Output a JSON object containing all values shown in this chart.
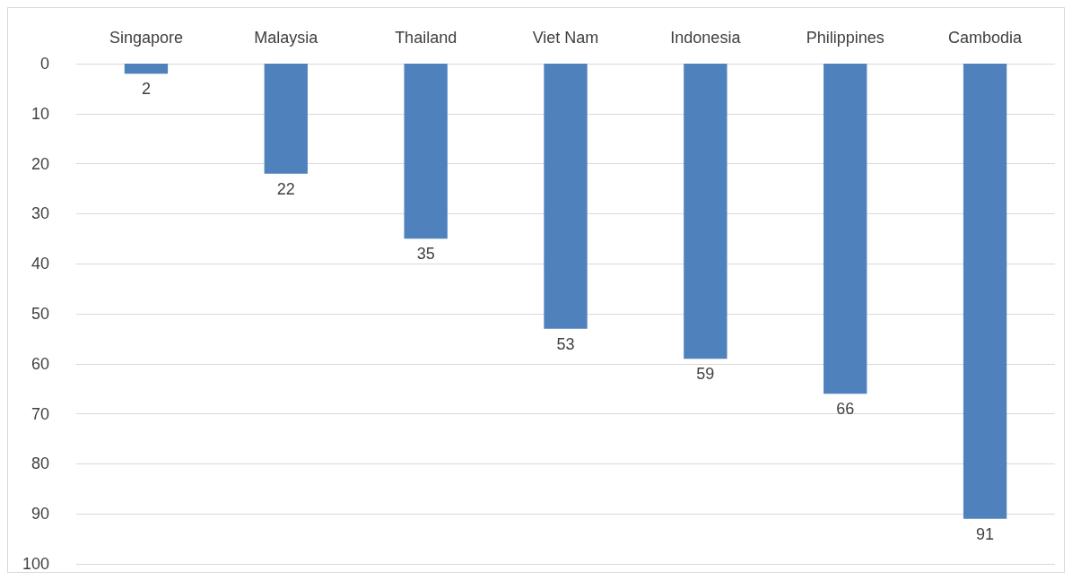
{
  "chart_data": {
    "type": "bar",
    "categories": [
      "Singapore",
      "Malaysia",
      "Thailand",
      "Viet Nam",
      "Indonesia",
      "Philippines",
      "Cambodia"
    ],
    "values": [
      2,
      22,
      35,
      53,
      59,
      66,
      91
    ],
    "color": "#4f81bd",
    "ylim": [
      100,
      0
    ],
    "yticks": [
      0,
      10,
      20,
      30,
      40,
      50,
      60,
      70,
      80,
      90,
      100
    ],
    "grid": "y",
    "data_labels": true
  }
}
